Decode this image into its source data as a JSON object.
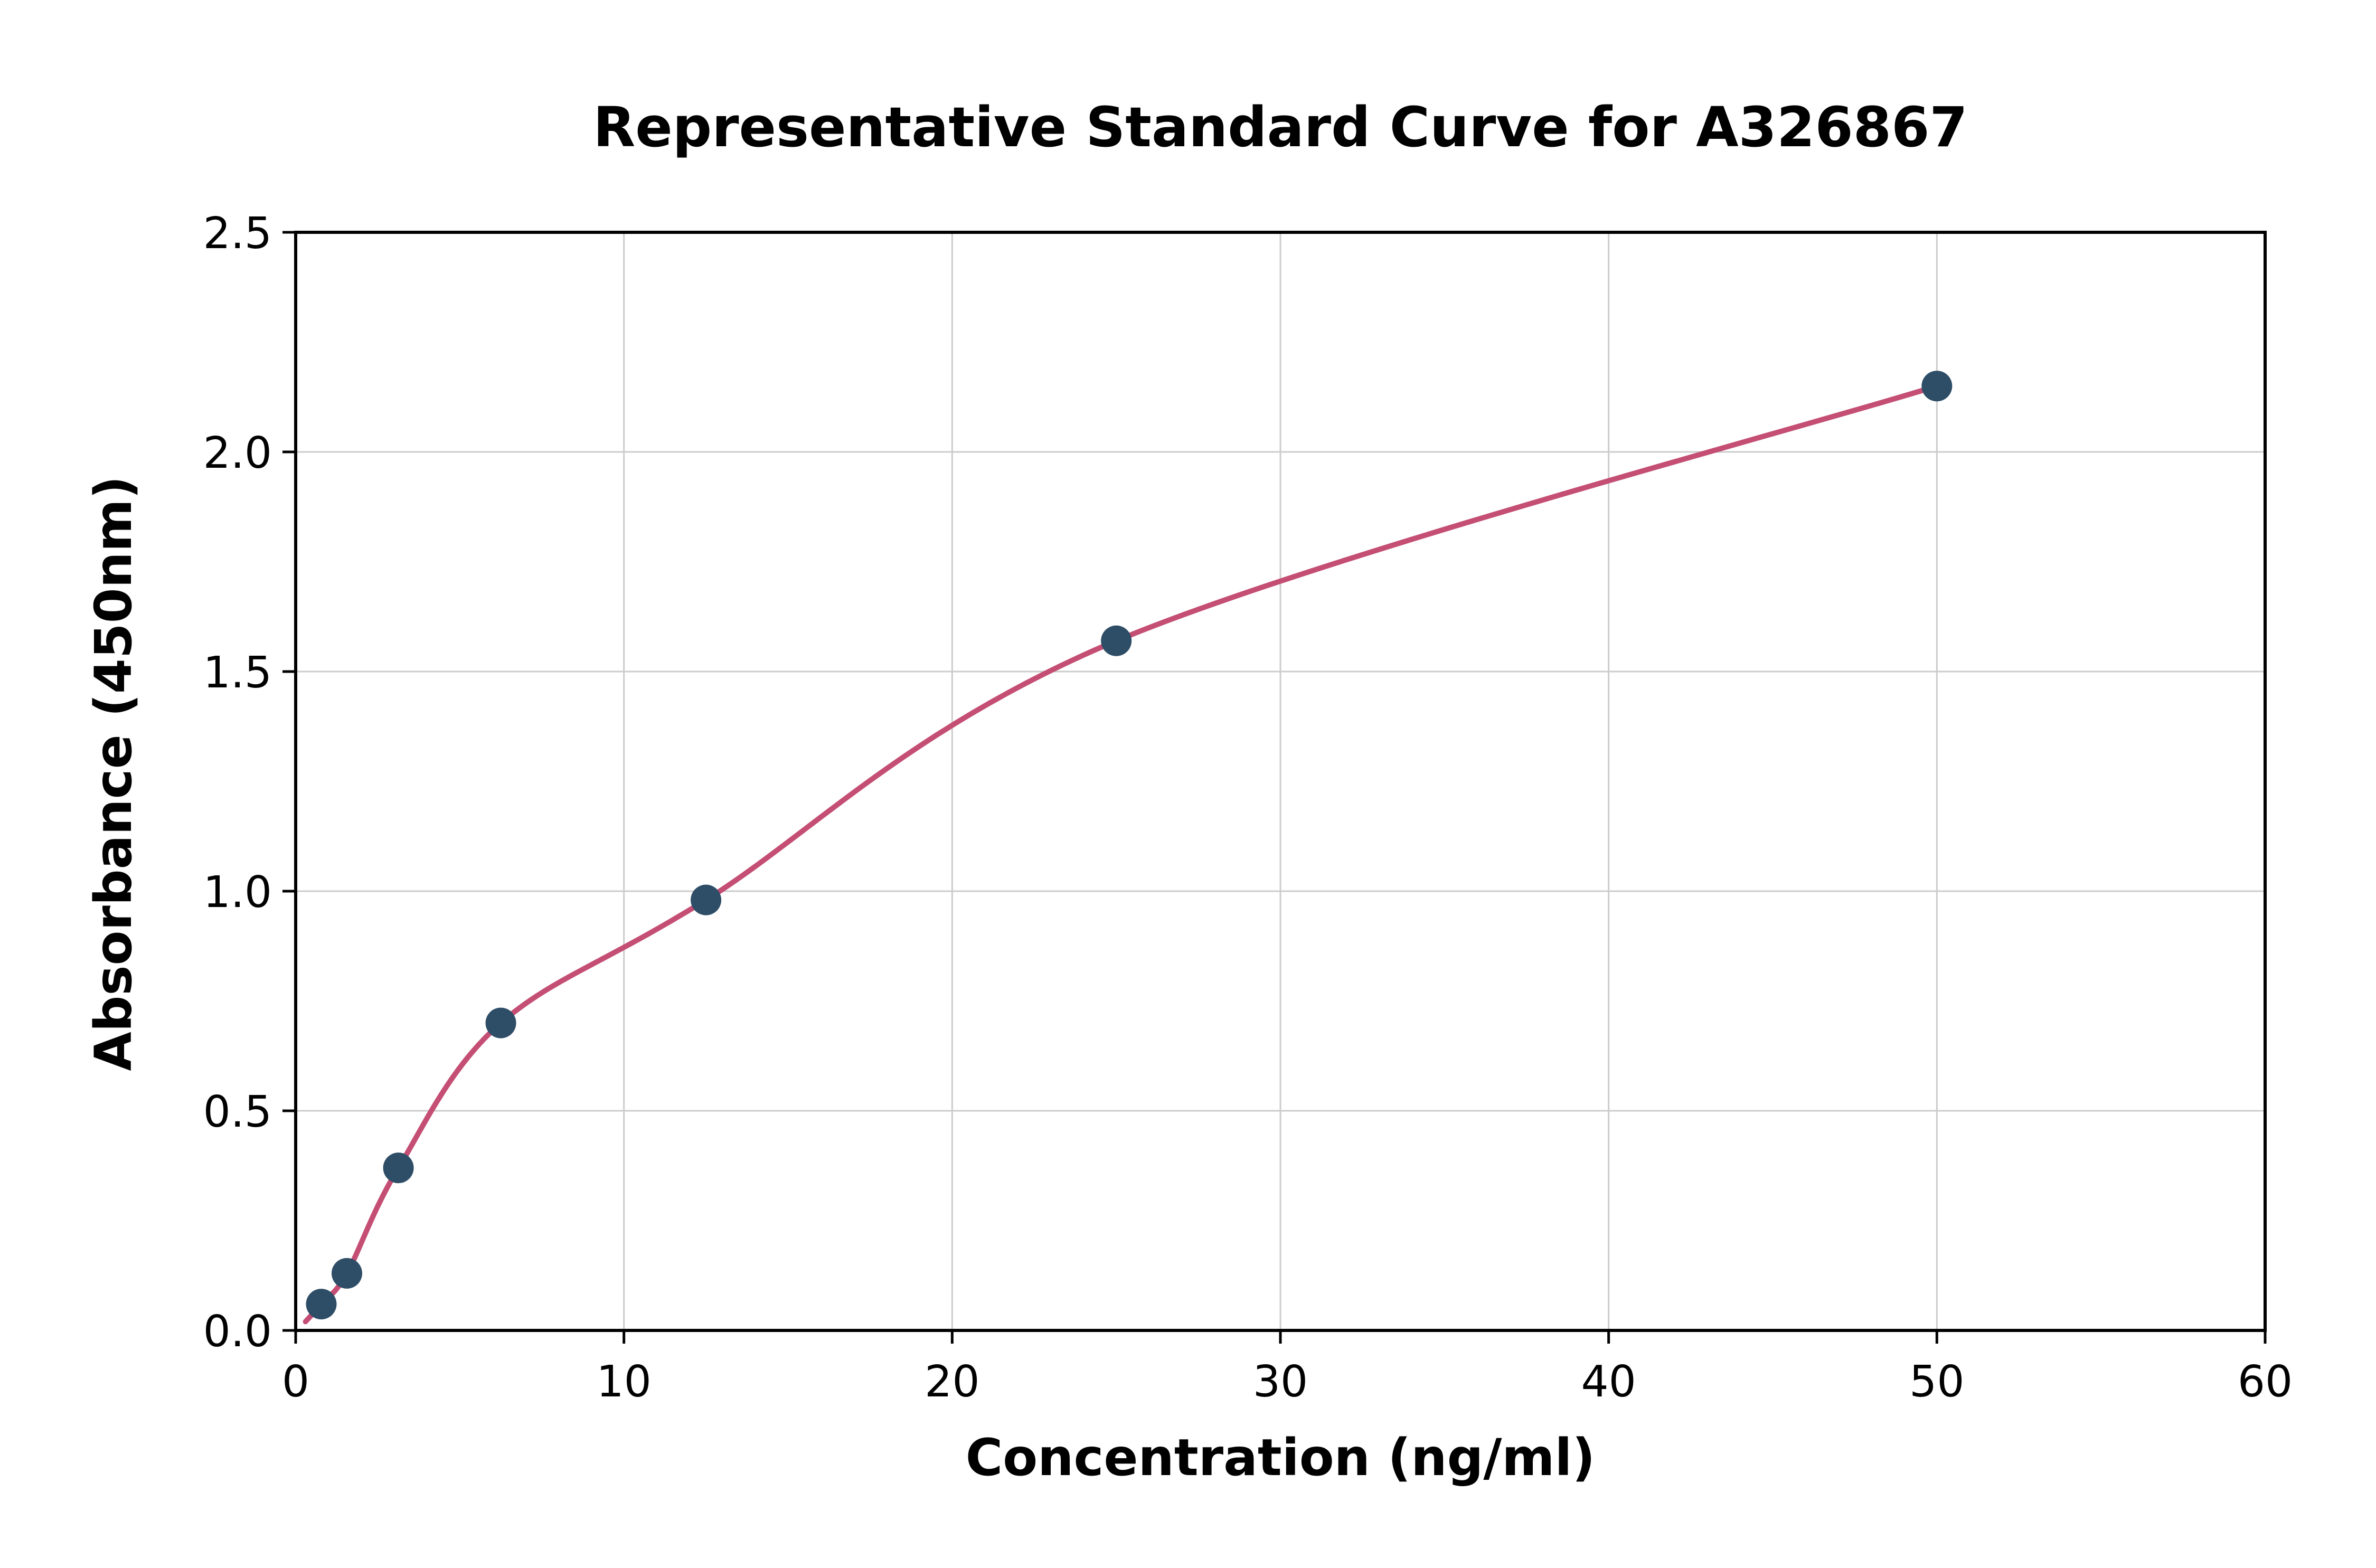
{
  "chart_data": {
    "type": "scatter",
    "title": "Representative Standard Curve for A326867",
    "xlabel": "Concentration (ng/ml)",
    "ylabel": "Absorbance (450nm)",
    "xlim": [
      0,
      60
    ],
    "ylim": [
      0,
      2.5
    ],
    "xticks": [
      0,
      10,
      20,
      30,
      40,
      50,
      60
    ],
    "yticks": [
      0.0,
      0.5,
      1.0,
      1.5,
      2.0,
      2.5
    ],
    "grid": true,
    "legend": "none",
    "points": [
      {
        "x": 0.78,
        "y": 0.06
      },
      {
        "x": 1.56,
        "y": 0.13
      },
      {
        "x": 3.13,
        "y": 0.37
      },
      {
        "x": 6.25,
        "y": 0.7
      },
      {
        "x": 12.5,
        "y": 0.98
      },
      {
        "x": 25,
        "y": 1.57
      },
      {
        "x": 50,
        "y": 2.15
      }
    ],
    "curve_start": {
      "x": 0.3,
      "y": 0.02
    },
    "point_color": "#2e4d66",
    "curve_color": "#c44e74",
    "grid_color": "#cccccc",
    "axis_color": "#000000"
  }
}
